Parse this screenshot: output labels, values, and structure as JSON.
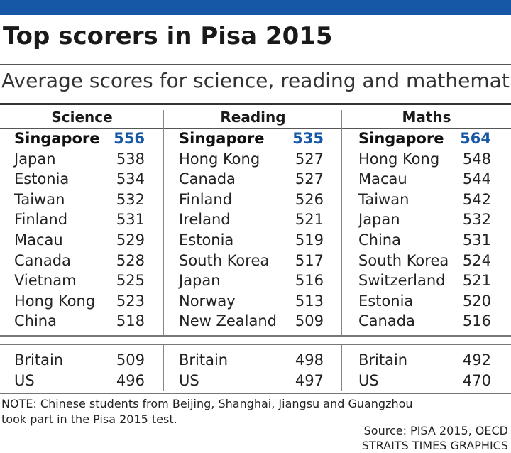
{
  "title": "Top scorers in Pisa 2015",
  "subtitle": "Average scores for science, reading and mathematics",
  "colors": {
    "brand_bar": "#1758a6",
    "accent_score": "#1758a6"
  },
  "note": "NOTE: Chinese students from Beijing, Shanghai, Jiangsu and Guangzhou took part in the Pisa 2015 test.",
  "source_line1": "Source: PISA 2015, OECD",
  "source_line2": "STRAITS TIMES GRAPHICS",
  "chart_data": {
    "type": "table",
    "title": "Top scorers in Pisa 2015",
    "subtitle": "Average scores for science, reading and mathematics",
    "columns": [
      {
        "name": "Science",
        "top": [
          {
            "country": "Singapore",
            "score": 556
          },
          {
            "country": "Japan",
            "score": 538
          },
          {
            "country": "Estonia",
            "score": 534
          },
          {
            "country": "Taiwan",
            "score": 532
          },
          {
            "country": "Finland",
            "score": 531
          },
          {
            "country": "Macau",
            "score": 529
          },
          {
            "country": "Canada",
            "score": 528
          },
          {
            "country": "Vietnam",
            "score": 525
          },
          {
            "country": "Hong Kong",
            "score": 523
          },
          {
            "country": "China",
            "score": 518
          }
        ],
        "extra": [
          {
            "country": "Britain",
            "score": 509
          },
          {
            "country": "US",
            "score": 496
          }
        ]
      },
      {
        "name": "Reading",
        "top": [
          {
            "country": "Singapore",
            "score": 535
          },
          {
            "country": "Hong Kong",
            "score": 527
          },
          {
            "country": "Canada",
            "score": 527
          },
          {
            "country": "Finland",
            "score": 526
          },
          {
            "country": "Ireland",
            "score": 521
          },
          {
            "country": "Estonia",
            "score": 519
          },
          {
            "country": "South Korea",
            "score": 517
          },
          {
            "country": "Japan",
            "score": 516
          },
          {
            "country": "Norway",
            "score": 513
          },
          {
            "country": "New Zealand",
            "score": 509
          }
        ],
        "extra": [
          {
            "country": "Britain",
            "score": 498
          },
          {
            "country": "US",
            "score": 497
          }
        ]
      },
      {
        "name": "Maths",
        "top": [
          {
            "country": "Singapore",
            "score": 564
          },
          {
            "country": "Hong Kong",
            "score": 548
          },
          {
            "country": "Macau",
            "score": 544
          },
          {
            "country": "Taiwan",
            "score": 542
          },
          {
            "country": "Japan",
            "score": 532
          },
          {
            "country": "China",
            "score": 531
          },
          {
            "country": "South Korea",
            "score": 524
          },
          {
            "country": "Switzerland",
            "score": 521
          },
          {
            "country": "Estonia",
            "score": 520
          },
          {
            "country": "Canada",
            "score": 516
          }
        ],
        "extra": [
          {
            "country": "Britain",
            "score": 492
          },
          {
            "country": "US",
            "score": 470
          }
        ]
      }
    ]
  }
}
